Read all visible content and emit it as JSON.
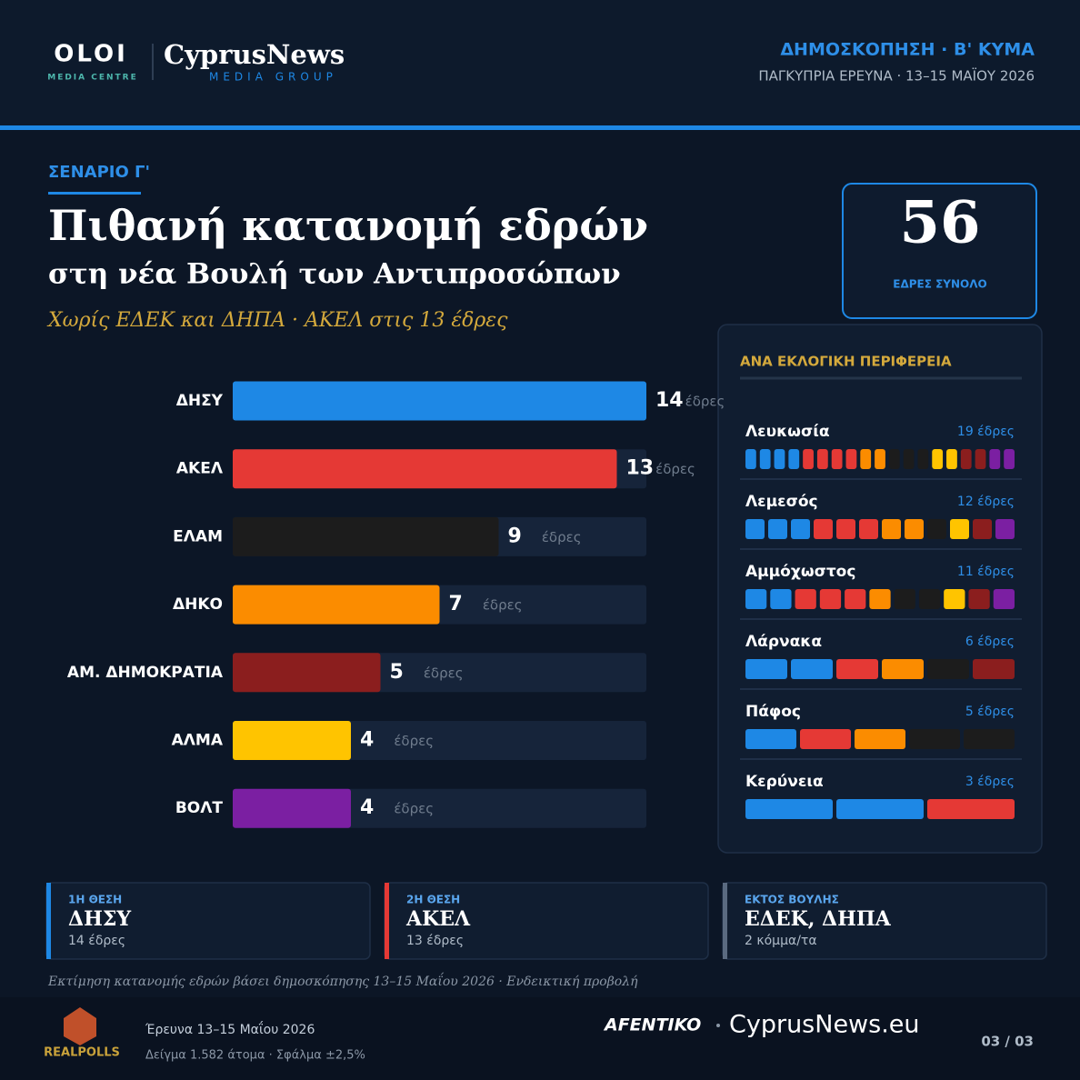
{
  "header": {
    "logo_main": "OLOI",
    "logo_sub": "MEDIA CENTRE",
    "brand": "CyprusNews",
    "brand_sub": "MEDIA GROUP",
    "kicker": "ΔΗΜΟΣΚΟΠΗΣΗ · Β' ΚΥΜΑ",
    "subtitle": "ΠΑΓΚΥΠΡΙΑ ΕΡΕΥΝΑ · 13–15 ΜΑΪΟΥ 2026"
  },
  "scenario": "ΣΕΝΑΡΙΟ Γ'",
  "total": {
    "value": 56,
    "label": "ΕΔΡΕΣ ΣΥΝΟΛΟ"
  },
  "chart_data": {
    "type": "bar",
    "orientation": "horizontal",
    "title": "Πιθανή κατανομή εδρών",
    "subtitle": "στη νέα Βουλή των Αντιπροσώπων",
    "annotation": "Χωρίς ΕΔΕΚ και ΔΗΠΑ · ΑΚΕΛ στις 13 έδρες",
    "categories": [
      "ΔΗΣΥ",
      "ΑΚΕΛ",
      "ΕΛΑΜ",
      "ΔΗΚΟ",
      "ΑΜ. ΔΗΜΟΚΡΑΤΙΑ",
      "ΑΛΜΑ",
      "ΒΟΛΤ"
    ],
    "values": [
      14,
      13,
      9,
      7,
      5,
      4,
      4
    ],
    "colors": [
      "#1e88e5",
      "#e53935",
      "#1c1c1c",
      "#fb8c00",
      "#8b1e1e",
      "#ffc400",
      "#7b1fa2"
    ],
    "unit": "έδρες",
    "xlim": [
      0,
      14
    ]
  },
  "regions": {
    "title": "ΑΝΑ ΕΚΛΟΓΙΚΗ ΠΕΡΙΦΕΡΕΙΑ",
    "items": [
      {
        "name": "Λευκωσία",
        "seats": 19,
        "seats_label": "19 έδρες",
        "party_seats": [
          4,
          4,
          3,
          2,
          2,
          2,
          2
        ]
      },
      {
        "name": "Λεμεσός",
        "seats": 12,
        "seats_label": "12 έδρες",
        "party_seats": [
          3,
          3,
          1,
          2,
          1,
          1,
          1
        ]
      },
      {
        "name": "Αμμόχωστος",
        "seats": 11,
        "seats_label": "11 έδρες",
        "party_seats": [
          2,
          3,
          2,
          1,
          1,
          1,
          1
        ]
      },
      {
        "name": "Λάρνακα",
        "seats": 6,
        "seats_label": "6 έδρες",
        "party_seats": [
          2,
          1,
          1,
          1,
          1,
          0,
          0
        ]
      },
      {
        "name": "Πάφος",
        "seats": 5,
        "seats_label": "5 έδρες",
        "party_seats": [
          1,
          1,
          2,
          1,
          0,
          0,
          0
        ]
      },
      {
        "name": "Κερύνεια",
        "seats": 3,
        "seats_label": "3 έδρες",
        "party_seats": [
          2,
          1,
          0,
          0,
          0,
          0,
          0
        ]
      }
    ]
  },
  "cards": [
    {
      "label": "1Η ΘΕΣΗ",
      "party": "ΔΗΣΥ",
      "detail": "14 έδρες",
      "color": "#1e88e5"
    },
    {
      "label": "2Η ΘΕΣΗ",
      "party": "ΑΚΕΛ",
      "detail": "13 έδρες",
      "color": "#e53935"
    },
    {
      "label": "ΕΚΤΟΣ ΒΟΥΛΗΣ",
      "party": "ΕΔΕΚ, ΔΗΠΑ",
      "detail": "2 κόμμα/τα",
      "color": "#5a6a80"
    }
  ],
  "note": "Εκτίμηση κατανομής εδρών βάσει δημοσκόπησης 13–15 Μαΐου 2026 · Ενδεικτική προβολή",
  "footer": {
    "pollster": "REALPOLLS",
    "survey": "Έρευνα 13–15 Μαΐου 2026",
    "sample": "Δείγμα 1.582 άτομα · Σφάλμα ±2,5%",
    "partner": "AFENTIKO",
    "site": "CyprusNews.eu",
    "page": "03 / 03"
  }
}
